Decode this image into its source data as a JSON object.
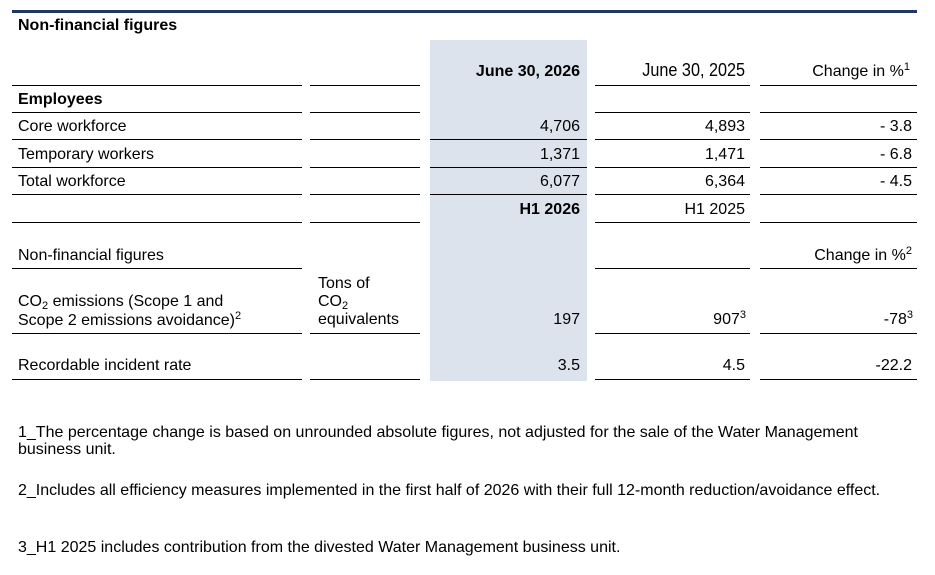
{
  "title": "Non-financial figures",
  "header": {
    "col1": "June 30, 2026",
    "col2": "June 30, 2025",
    "col3": "Change in %",
    "col3_sup": "1"
  },
  "employees": {
    "section": "Employees",
    "rows": [
      {
        "label": "Core workforce",
        "v1": "4,706",
        "v2": "4,893",
        "change": "- 3.8"
      },
      {
        "label": "Temporary workers",
        "v1": "1,371",
        "v2": "1,471",
        "change": "- 6.8"
      },
      {
        "label": "Total workforce",
        "v1": "6,077",
        "v2": "6,364",
        "change": "- 4.5"
      }
    ]
  },
  "period": {
    "col1": "H1 2026",
    "col2": "H1 2025"
  },
  "nonfin": {
    "section": "Non-financial figures",
    "change_header": "Change in %",
    "change_header_sup": "2",
    "co2": {
      "label_a": "CO",
      "label_sub": "2",
      "label_b": " emissions (Scope 1 and",
      "label_line2": "Scope 2 emissions avoidance)",
      "label_sup": "2",
      "unit_line1": "Tons of",
      "unit_line2": "CO",
      "unit_line2_sub": "2",
      "unit_line3": "equivalents",
      "v1": "197",
      "v2": "907",
      "v2_sup": "3",
      "change": "-78",
      "change_sup": "3"
    },
    "incident": {
      "label": "Recordable incident rate",
      "v1": "3.5",
      "v2": "4.5",
      "change": "-22.2"
    }
  },
  "footnotes": [
    "1_The percentage change is based on unrounded absolute figures, not adjusted for the sale of the Water Management business unit.",
    "2_Includes all efficiency measures implemented in the first half of 2026 with their full 12-month reduction/avoidance effect.",
    "3_H1 2025 includes contribution from the divested Water Management business unit."
  ]
}
